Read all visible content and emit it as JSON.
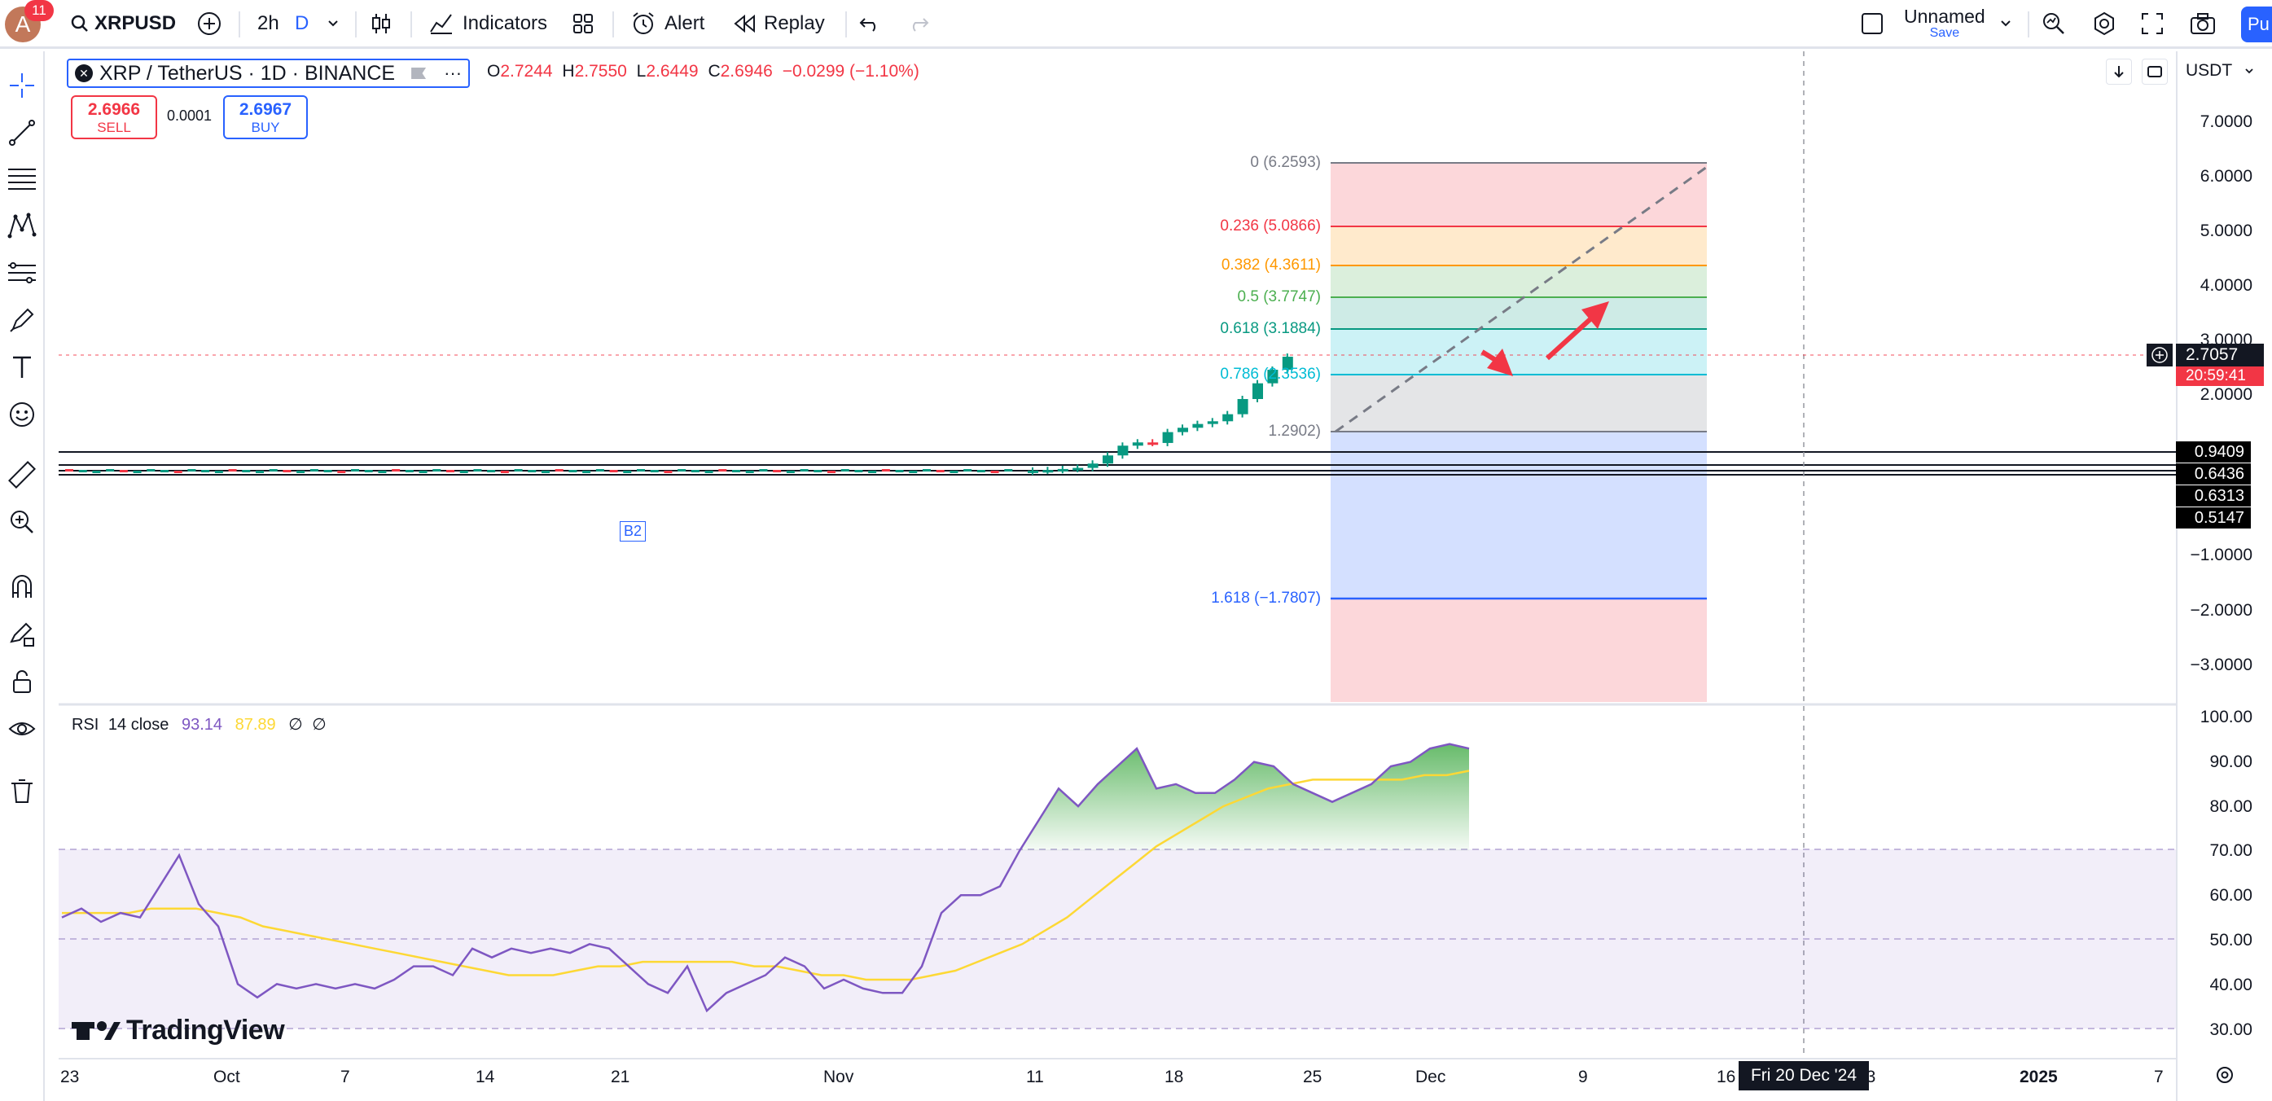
{
  "header": {
    "notification_count": "11",
    "avatar_letter": "A",
    "symbol": "XRPUSD",
    "interval": "2h",
    "interval_alt": "D",
    "indicators_label": "Indicators",
    "alert_label": "Alert",
    "replay_label": "Replay",
    "layout_name": "Unnamed",
    "save_label": "Save",
    "publish_label": "Pu"
  },
  "legend": {
    "title": "XRP / TetherUS · 1D · BINANCE",
    "more": "···",
    "open_key": "O",
    "open": "2.7244",
    "high_key": "H",
    "high": "2.7550",
    "low_key": "L",
    "low": "2.6449",
    "close_key": "C",
    "close": "2.6946",
    "change": "−0.0299 (−1.10%)"
  },
  "trade": {
    "sell_price": "2.6966",
    "sell_label": "SELL",
    "spread": "0.0001",
    "buy_price": "2.6967",
    "buy_label": "BUY"
  },
  "price_axis": {
    "currency": "USDT",
    "ticks": [
      "7.0000",
      "6.0000",
      "5.0000",
      "4.0000",
      "3.0000",
      "2.0000",
      "−1.0000",
      "−2.0000",
      "−3.0000"
    ],
    "current_price": "2.7057",
    "countdown": "20:59:41",
    "black_labels": [
      "0.9409",
      "0.6436",
      "0.6313",
      "0.5147"
    ]
  },
  "fib": {
    "levels": [
      {
        "ratio": "0",
        "value": "6.2593",
        "label": "0 (6.2593)",
        "color": "#787b86"
      },
      {
        "ratio": "0.236",
        "value": "5.0866",
        "label": "0.236 (5.0866)",
        "color": "#f23645"
      },
      {
        "ratio": "0.382",
        "value": "4.3611",
        "label": "0.382 (4.3611)",
        "color": "#ff9800"
      },
      {
        "ratio": "0.5",
        "value": "3.7747",
        "label": "0.5 (3.7747)",
        "color": "#4caf50"
      },
      {
        "ratio": "0.618",
        "value": "3.1884",
        "label": "0.618 (3.1884)",
        "color": "#089981"
      },
      {
        "ratio": "0.786",
        "value": "2.3536",
        "label": "0.786 (2.3536)",
        "color": "#00bcd4"
      },
      {
        "ratio": "1",
        "value": "1.2902",
        "label": "1.2902)",
        "color": "#787b86"
      },
      {
        "ratio": "1.618",
        "value": "−1.7807",
        "label": "1.618 (−1.7807)",
        "color": "#2962ff"
      }
    ]
  },
  "annotation_label": "B2",
  "rsi": {
    "title": "RSI",
    "params": "14 close",
    "value": "93.14",
    "ma_value": "87.89",
    "na1": "∅",
    "na2": "∅",
    "ticks": [
      "100.00",
      "90.00",
      "80.00",
      "70.00",
      "60.00",
      "50.00",
      "40.00",
      "30.00"
    ],
    "line_color": "#7e57c2",
    "ma_color": "#fdd835"
  },
  "time_axis": {
    "labels": [
      "23",
      "Oct",
      "7",
      "14",
      "21",
      "Nov",
      "11",
      "18",
      "25",
      "Dec",
      "9",
      "16",
      "23",
      "2025",
      "7"
    ],
    "crosshair_date": "Fri 20 Dec '24"
  },
  "watermark": "TradingView",
  "icons": {
    "search": "search-icon",
    "add": "plus-circle-icon",
    "candles": "candles-icon",
    "indicators": "indicators-icon",
    "templates": "grid-icon",
    "alert": "alarm-clock-icon",
    "replay": "rewind-icon",
    "undo": "undo-icon",
    "redo": "redo-icon",
    "settings": "gear-icon",
    "fullscreen": "fullscreen-icon",
    "camera": "camera-icon"
  },
  "chart_data": {
    "type": "candlestick",
    "symbol": "XRP / TetherUS",
    "interval": "1D",
    "ylim": [
      -3.6,
      7.6
    ],
    "candles_close_approx": [
      0.59,
      0.6,
      0.62,
      0.64,
      0.72,
      0.87,
      1.05,
      1.11,
      1.1,
      1.3,
      1.38,
      1.45,
      1.5,
      1.63,
      1.91,
      2.2,
      2.45,
      2.69
    ],
    "rsi_ylim": [
      25,
      102
    ],
    "rsi_values": [
      55,
      57,
      54,
      56,
      55,
      62,
      69,
      58,
      53,
      40,
      37,
      40,
      39,
      40,
      39,
      40,
      39,
      41,
      44,
      44,
      42,
      48,
      46,
      48,
      47,
      48,
      47,
      49,
      48,
      44,
      40,
      38,
      44,
      34,
      38,
      40,
      42,
      46,
      44,
      39,
      41,
      39,
      38,
      38,
      44,
      56,
      60,
      60,
      62,
      70,
      77,
      84,
      80,
      85,
      89,
      93,
      84,
      85,
      83,
      83,
      86,
      90,
      89,
      85,
      83,
      81,
      83,
      85,
      89,
      90,
      93,
      94,
      93
    ],
    "rsi_ma_values": [
      56,
      56,
      56,
      56,
      57,
      57,
      57,
      56,
      55,
      53,
      52,
      51,
      50,
      49,
      48,
      47,
      46,
      45,
      44,
      43,
      42,
      42,
      42,
      43,
      44,
      44,
      45,
      45,
      45,
      45,
      45,
      44,
      44,
      43,
      42,
      42,
      41,
      41,
      41,
      42,
      43,
      45,
      47,
      49,
      52,
      55,
      59,
      63,
      67,
      71,
      74,
      77,
      80,
      82,
      84,
      85,
      86,
      86,
      86,
      86,
      86,
      87,
      87,
      88
    ]
  }
}
